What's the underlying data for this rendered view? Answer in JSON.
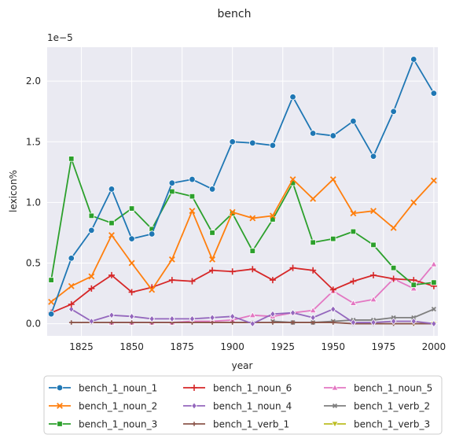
{
  "chart_data": {
    "type": "line",
    "title": "bench",
    "xlabel": "year",
    "ylabel": "lexicon%",
    "y_scale_label": "1e−5",
    "xlim": [
      1808,
      2002
    ],
    "ylim": [
      -0.1,
      2.28
    ],
    "x_ticks": [
      1825,
      1850,
      1875,
      1900,
      1925,
      1950,
      1975,
      2000
    ],
    "x_tick_labels": [
      "1825",
      "1850",
      "1875",
      "1900",
      "1925",
      "1950",
      "1975",
      "2000"
    ],
    "y_ticks": [
      0.0,
      0.5,
      1.0,
      1.5,
      2.0
    ],
    "y_tick_labels": [
      "0.0",
      "0.5",
      "1.0",
      "1.5",
      "2.0"
    ],
    "grid": true,
    "legend_position": "bottom, outside, 3 columns",
    "series": [
      {
        "name": "bench_1_noun_1",
        "color": "#1f77b4",
        "marker": "circle",
        "x": [
          1810,
          1820,
          1830,
          1840,
          1850,
          1860,
          1870,
          1880,
          1890,
          1900,
          1910,
          1920,
          1930,
          1940,
          1950,
          1960,
          1970,
          1980,
          1990,
          2000
        ],
        "y": [
          0.08,
          0.54,
          0.77,
          1.11,
          0.7,
          0.74,
          1.16,
          1.19,
          1.11,
          1.5,
          1.49,
          1.47,
          1.87,
          1.57,
          1.55,
          1.67,
          1.38,
          1.75,
          2.18,
          1.9
        ]
      },
      {
        "name": "bench_1_noun_2",
        "color": "#ff7f0e",
        "marker": "x",
        "x": [
          1810,
          1820,
          1830,
          1840,
          1850,
          1860,
          1870,
          1880,
          1890,
          1900,
          1910,
          1920,
          1930,
          1940,
          1950,
          1960,
          1970,
          1980,
          1990,
          2000
        ],
        "y": [
          0.18,
          0.31,
          0.39,
          0.73,
          0.5,
          0.28,
          0.53,
          0.93,
          0.53,
          0.92,
          0.87,
          0.89,
          1.19,
          1.03,
          1.19,
          0.91,
          0.93,
          0.79,
          1.0,
          1.18
        ]
      },
      {
        "name": "bench_1_noun_3",
        "color": "#2ca02c",
        "marker": "square",
        "x": [
          1810,
          1820,
          1830,
          1840,
          1850,
          1860,
          1870,
          1880,
          1890,
          1900,
          1910,
          1920,
          1930,
          1940,
          1950,
          1960,
          1970,
          1980,
          1990,
          2000
        ],
        "y": [
          0.36,
          1.36,
          0.89,
          0.83,
          0.95,
          0.78,
          1.09,
          1.05,
          0.75,
          0.91,
          0.6,
          0.86,
          1.16,
          0.67,
          0.7,
          0.76,
          0.65,
          0.46,
          0.32,
          0.34
        ]
      },
      {
        "name": "bench_1_noun_6",
        "color": "#d62728",
        "marker": "plus",
        "x": [
          1810,
          1820,
          1830,
          1840,
          1850,
          1860,
          1870,
          1880,
          1890,
          1900,
          1910,
          1920,
          1930,
          1940,
          1950,
          1960,
          1970,
          1980,
          1990,
          2000
        ],
        "y": [
          0.09,
          0.16,
          0.29,
          0.4,
          0.26,
          0.3,
          0.36,
          0.35,
          0.44,
          0.43,
          0.45,
          0.36,
          0.46,
          0.44,
          0.28,
          0.35,
          0.4,
          0.37,
          0.36,
          0.31
        ]
      },
      {
        "name": "bench_1_noun_4",
        "color": "#9467bd",
        "marker": "diamond",
        "x": [
          1820,
          1830,
          1840,
          1850,
          1860,
          1870,
          1880,
          1890,
          1900,
          1910,
          1920,
          1930,
          1940,
          1950,
          1960,
          1970,
          1980,
          1990,
          2000
        ],
        "y": [
          0.12,
          0.02,
          0.07,
          0.06,
          0.04,
          0.04,
          0.04,
          0.05,
          0.06,
          0.0,
          0.08,
          0.09,
          0.05,
          0.12,
          0.01,
          0.01,
          0.02,
          0.02,
          0.0
        ]
      },
      {
        "name": "bench_1_verb_1",
        "color": "#8c564b",
        "marker": "plus-small",
        "x": [
          1820,
          1830,
          1840,
          1850,
          1860,
          1870,
          1880,
          1890,
          1900,
          1910,
          1920,
          1930,
          1940,
          1950,
          1960,
          1970,
          1980,
          1990,
          2000
        ],
        "y": [
          0.01,
          0.01,
          0.01,
          0.01,
          0.01,
          0.01,
          0.01,
          0.01,
          0.01,
          0.01,
          0.01,
          0.01,
          0.01,
          0.01,
          0.0,
          0.0,
          0.0,
          0.0,
          0.0
        ]
      },
      {
        "name": "bench_1_noun_5",
        "color": "#e377c2",
        "marker": "triangle-up",
        "x": [
          1840,
          1850,
          1860,
          1870,
          1880,
          1890,
          1900,
          1910,
          1920,
          1930,
          1940,
          1950,
          1960,
          1970,
          1980,
          1990,
          2000
        ],
        "y": [
          0.01,
          0.01,
          0.01,
          0.01,
          0.02,
          0.02,
          0.03,
          0.07,
          0.06,
          0.09,
          0.11,
          0.27,
          0.17,
          0.2,
          0.37,
          0.29,
          0.49
        ]
      },
      {
        "name": "bench_1_verb_2",
        "color": "#7f7f7f",
        "marker": "x-small",
        "x": [
          1920,
          1930,
          1940,
          1950,
          1960,
          1970,
          1980,
          1990,
          2000
        ],
        "y": [
          0.02,
          0.01,
          0.01,
          0.02,
          0.03,
          0.03,
          0.05,
          0.05,
          0.12
        ]
      },
      {
        "name": "bench_1_verb_3",
        "color": "#bcbd22",
        "marker": "triangle-down",
        "x": [
          1990,
          2000
        ],
        "y": [
          0.0,
          0.0
        ]
      }
    ]
  }
}
